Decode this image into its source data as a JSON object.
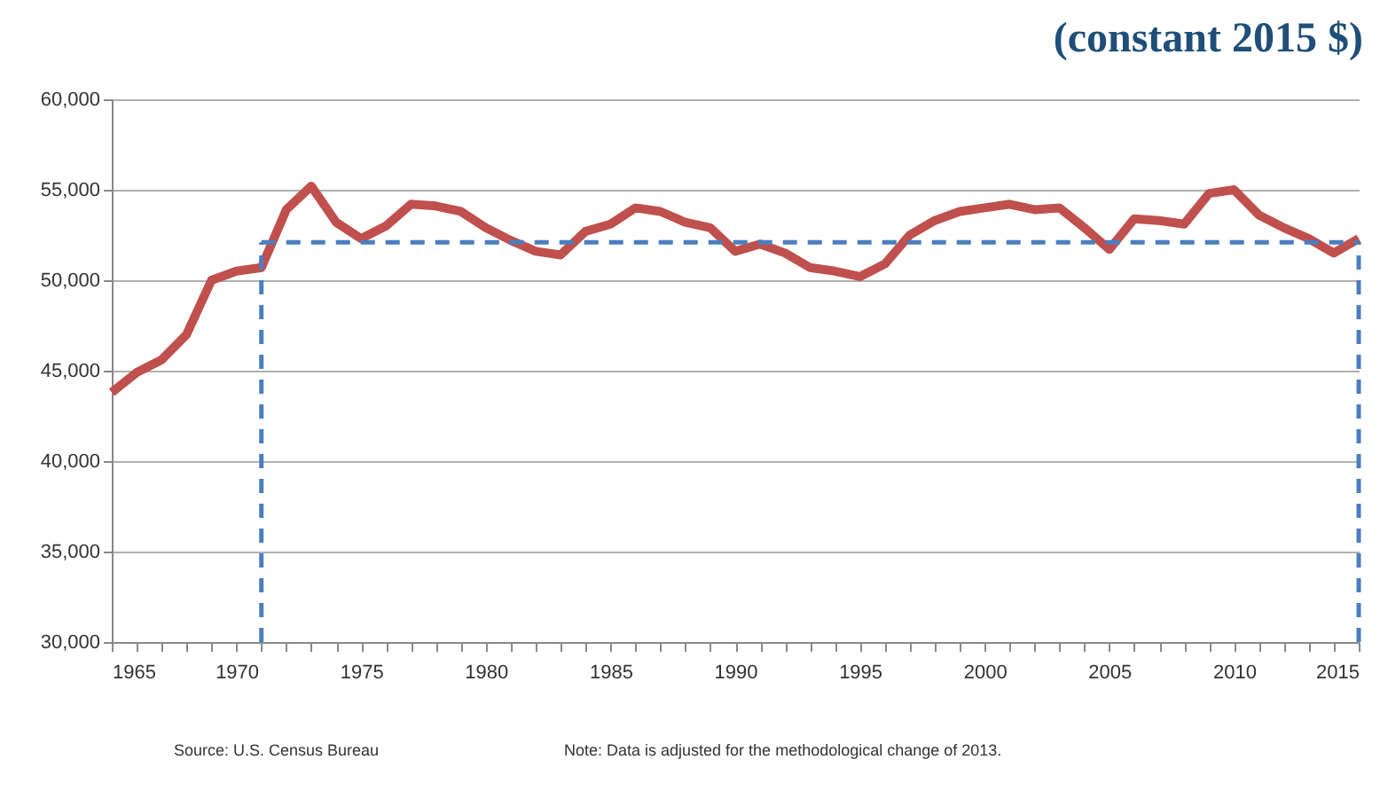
{
  "chart_data": {
    "type": "line",
    "title": "(constant 2015 $)",
    "x": [
      1965,
      1966,
      1967,
      1968,
      1969,
      1970,
      1971,
      1972,
      1973,
      1974,
      1975,
      1976,
      1977,
      1978,
      1979,
      1980,
      1981,
      1982,
      1983,
      1984,
      1985,
      1986,
      1987,
      1988,
      1989,
      1990,
      1991,
      1992,
      1993,
      1994,
      1995,
      1996,
      1997,
      1998,
      1999,
      2000,
      2001,
      2002,
      2003,
      2004,
      2005,
      2006,
      2007,
      2008,
      2009,
      2010,
      2011,
      2012,
      2013,
      2014,
      2015
    ],
    "series": [
      {
        "color": "#c0504d",
        "line_style": "solid",
        "values": [
          43800,
          44900,
          45600,
          47000,
          50000,
          50500,
          50700,
          53900,
          55200,
          53200,
          52300,
          53000,
          54200,
          54100,
          53800,
          52900,
          52200,
          51600,
          51400,
          52700,
          53100,
          54000,
          53800,
          53200,
          52900,
          51600,
          52000,
          51500,
          50700,
          50500,
          50200,
          50900,
          52500,
          53300,
          53800,
          54000,
          54200,
          53900,
          54000,
          52900,
          51700,
          53400,
          53300,
          53100,
          54800,
          55000,
          53600,
          52900,
          52300,
          51500,
          52300
        ]
      }
    ],
    "ref_lines": [
      {
        "axis": "y",
        "value": 52100,
        "color": "#4a7ebf",
        "line_style": "dashed"
      },
      {
        "axis": "x",
        "value": 1971,
        "color": "#4a7ebf",
        "line_style": "dashed"
      },
      {
        "axis": "x",
        "value": 2015,
        "color": "#4a7ebf",
        "line_style": "dashed"
      }
    ],
    "xlim": [
      1965,
      2015
    ],
    "xticks": [
      1965,
      {
        "value": 1966,
        "label": null
      },
      {
        "value": 1967,
        "label": null
      },
      {
        "value": 1968,
        "label": null
      },
      {
        "value": 1969,
        "label": null
      },
      1970,
      {
        "value": 1971,
        "label": null
      },
      {
        "value": 1972,
        "label": null
      },
      {
        "value": 1973,
        "label": null
      },
      {
        "value": 1974,
        "label": null
      },
      1975,
      {
        "value": 1976,
        "label": null
      },
      {
        "value": 1977,
        "label": null
      },
      {
        "value": 1978,
        "label": null
      },
      {
        "value": 1979,
        "label": null
      },
      1980,
      {
        "value": 1981,
        "label": null
      },
      {
        "value": 1982,
        "label": null
      },
      {
        "value": 1983,
        "label": null
      },
      {
        "value": 1984,
        "label": null
      },
      1985,
      {
        "value": 1986,
        "label": null
      },
      {
        "value": 1987,
        "label": null
      },
      {
        "value": 1988,
        "label": null
      },
      {
        "value": 1989,
        "label": null
      },
      1990,
      {
        "value": 1991,
        "label": null
      },
      {
        "value": 1992,
        "label": null
      },
      {
        "value": 1993,
        "label": null
      },
      {
        "value": 1994,
        "label": null
      },
      1995,
      {
        "value": 1996,
        "label": null
      },
      {
        "value": 1997,
        "label": null
      },
      {
        "value": 1998,
        "label": null
      },
      {
        "value": 1999,
        "label": null
      },
      2000,
      {
        "value": 2001,
        "label": null
      },
      {
        "value": 2002,
        "label": null
      },
      {
        "value": 2003,
        "label": null
      },
      {
        "value": 2004,
        "label": null
      },
      2005,
      {
        "value": 2006,
        "label": null
      },
      {
        "value": 2007,
        "label": null
      },
      {
        "value": 2008,
        "label": null
      },
      {
        "value": 2009,
        "label": null
      },
      2010,
      {
        "value": 2011,
        "label": null
      },
      {
        "value": 2012,
        "label": null
      },
      {
        "value": 2013,
        "label": null
      },
      {
        "value": 2014,
        "label": null
      },
      2015
    ],
    "ylim": [
      30000,
      60000
    ],
    "yticks": [
      {
        "value": 30000,
        "label": "30,000"
      },
      {
        "value": 35000,
        "label": "35,000"
      },
      {
        "value": 40000,
        "label": "40,000"
      },
      {
        "value": 45000,
        "label": "45,000"
      },
      {
        "value": 50000,
        "label": "50,000"
      },
      {
        "value": 55000,
        "label": "55,000"
      },
      {
        "value": 60000,
        "label": "60,000"
      }
    ],
    "grid": "y",
    "annotations": [
      "Source: U.S. Census Bureau",
      "Note: Data is adjusted for the methodological change of 2013."
    ]
  }
}
